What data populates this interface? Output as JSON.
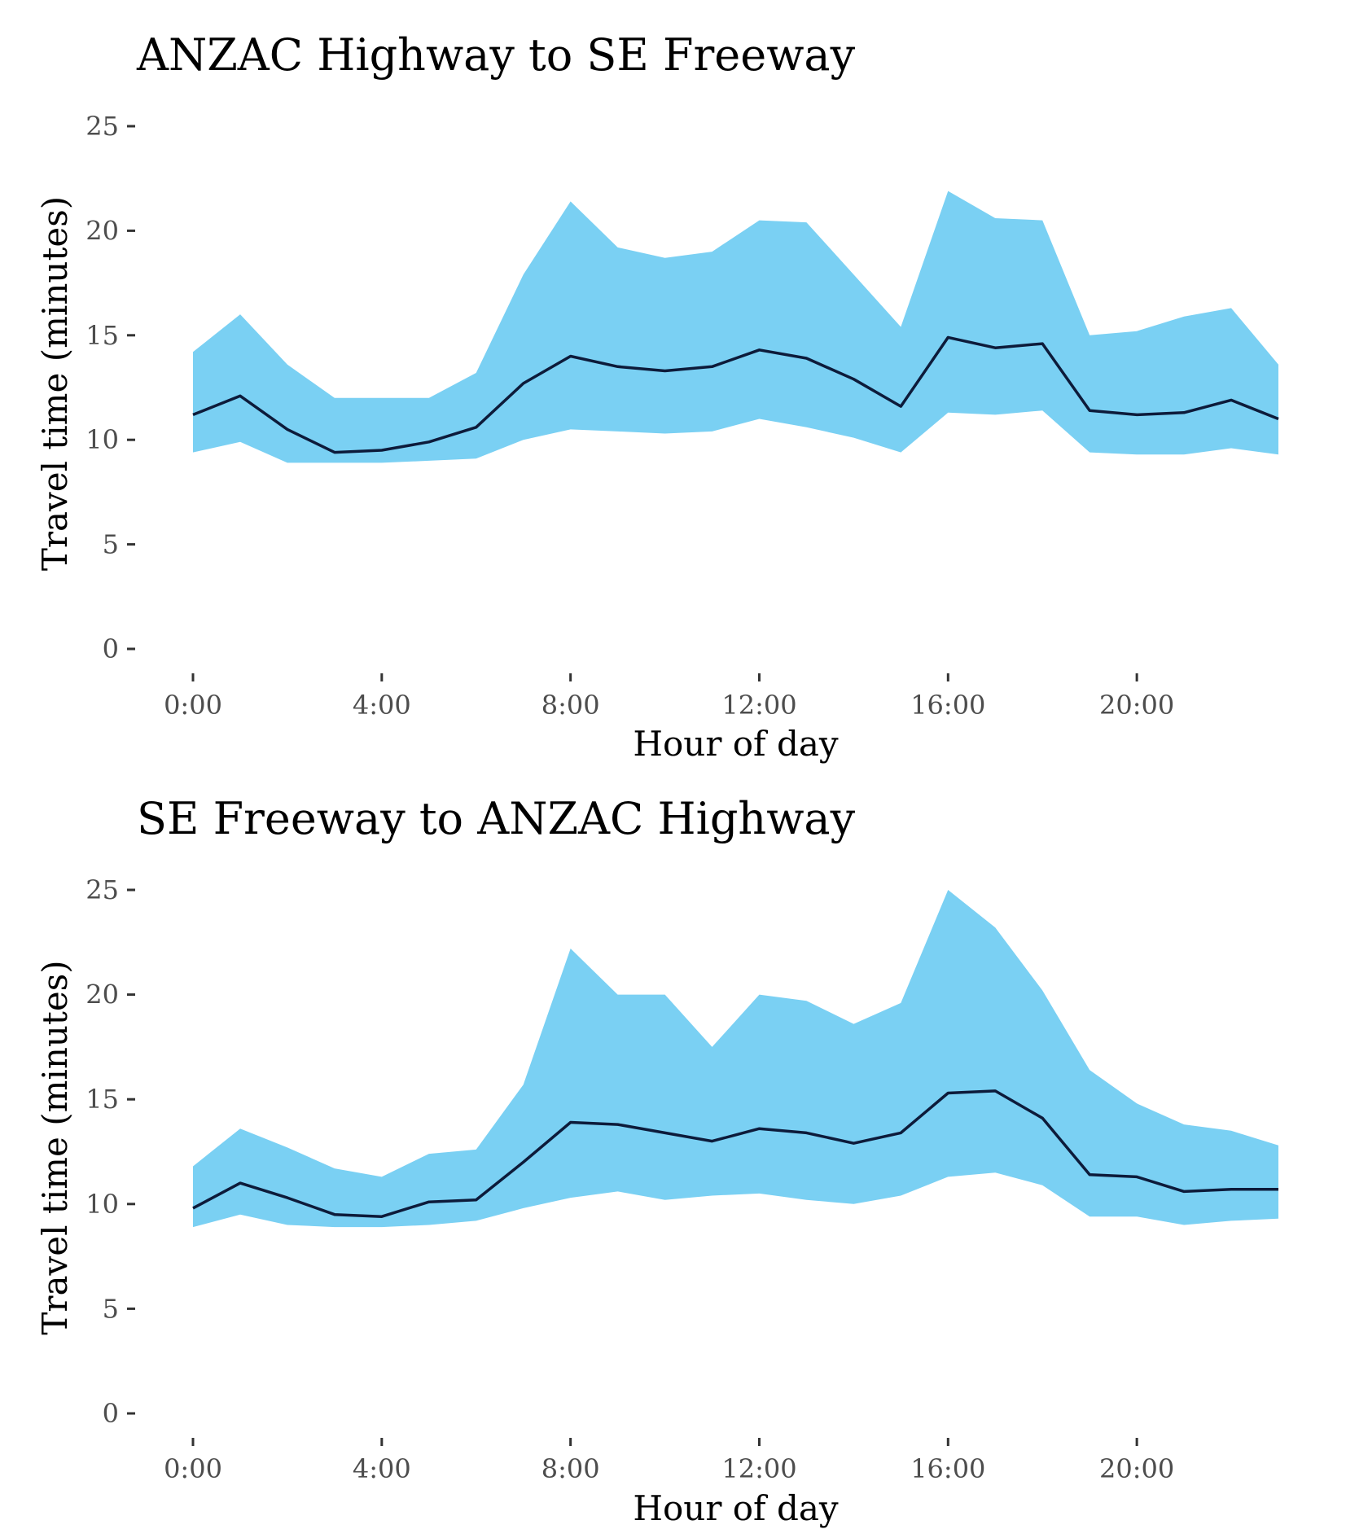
{
  "chart_data": [
    {
      "type": "area",
      "title": "ANZAC Highway to SE Freeway",
      "xlabel": "Hour of day",
      "ylabel": "Travel time (minutes)",
      "xlim": [
        0,
        23
      ],
      "ylim": [
        0,
        25
      ],
      "x_ticks": [
        0,
        4,
        8,
        12,
        16,
        20
      ],
      "x_tick_labels": [
        "0:00",
        "4:00",
        "8:00",
        "12:00",
        "16:00",
        "20:00"
      ],
      "y_ticks": [
        0,
        5,
        10,
        15,
        20,
        25
      ],
      "y_tick_labels": [
        "0",
        "5",
        "10",
        "15",
        "20",
        "25"
      ],
      "grid": false,
      "band_color": "#7ad0f3",
      "line_color": "#0d1b3a",
      "x": [
        0,
        1,
        2,
        3,
        4,
        5,
        6,
        7,
        8,
        9,
        10,
        11,
        12,
        13,
        14,
        15,
        16,
        17,
        18,
        19,
        20,
        21,
        22,
        23
      ],
      "upper": [
        14.2,
        16.0,
        13.6,
        12.0,
        12.0,
        12.0,
        13.2,
        17.9,
        21.4,
        19.2,
        18.7,
        19.0,
        20.5,
        20.4,
        17.9,
        15.4,
        21.9,
        20.6,
        20.5,
        15.0,
        15.2,
        15.9,
        16.3,
        13.6
      ],
      "median": [
        11.2,
        12.1,
        10.5,
        9.4,
        9.5,
        9.9,
        10.6,
        12.7,
        14.0,
        13.5,
        13.3,
        13.5,
        14.3,
        13.9,
        12.9,
        11.6,
        14.9,
        14.4,
        14.6,
        11.4,
        11.2,
        11.3,
        11.9,
        11.0
      ],
      "lower": [
        9.4,
        9.9,
        8.9,
        8.9,
        8.9,
        9.0,
        9.1,
        10.0,
        10.5,
        10.4,
        10.3,
        10.4,
        11.0,
        10.6,
        10.1,
        9.4,
        11.3,
        11.2,
        11.4,
        9.4,
        9.3,
        9.3,
        9.6,
        9.3
      ]
    },
    {
      "type": "area",
      "title": "SE Freeway to ANZAC Highway",
      "xlabel": "Hour of day",
      "ylabel": "Travel time (minutes)",
      "xlim": [
        0,
        23
      ],
      "ylim": [
        0,
        25
      ],
      "x_ticks": [
        0,
        4,
        8,
        12,
        16,
        20
      ],
      "x_tick_labels": [
        "0:00",
        "4:00",
        "8:00",
        "12:00",
        "16:00",
        "20:00"
      ],
      "y_ticks": [
        0,
        5,
        10,
        15,
        20,
        25
      ],
      "y_tick_labels": [
        "0",
        "5",
        "10",
        "15",
        "20",
        "25"
      ],
      "grid": false,
      "band_color": "#7ad0f3",
      "line_color": "#0d1b3a",
      "x": [
        0,
        1,
        2,
        3,
        4,
        5,
        6,
        7,
        8,
        9,
        10,
        11,
        12,
        13,
        14,
        15,
        16,
        17,
        18,
        19,
        20,
        21,
        22,
        23
      ],
      "upper": [
        11.8,
        13.6,
        12.7,
        11.7,
        11.3,
        12.4,
        12.6,
        15.7,
        22.2,
        20.0,
        20.0,
        17.5,
        20.0,
        19.7,
        18.6,
        19.6,
        25.0,
        23.2,
        20.2,
        16.4,
        14.8,
        13.8,
        13.5,
        12.8
      ],
      "median": [
        9.8,
        11.0,
        10.3,
        9.5,
        9.4,
        10.1,
        10.2,
        12.0,
        13.9,
        13.8,
        13.4,
        13.0,
        13.6,
        13.4,
        12.9,
        13.4,
        15.3,
        15.4,
        14.1,
        11.4,
        11.3,
        10.6,
        10.7,
        10.7
      ],
      "lower": [
        8.9,
        9.5,
        9.0,
        8.9,
        8.9,
        9.0,
        9.2,
        9.8,
        10.3,
        10.6,
        10.2,
        10.4,
        10.5,
        10.2,
        10.0,
        10.4,
        11.3,
        11.5,
        10.9,
        9.4,
        9.4,
        9.0,
        9.2,
        9.3
      ]
    }
  ]
}
